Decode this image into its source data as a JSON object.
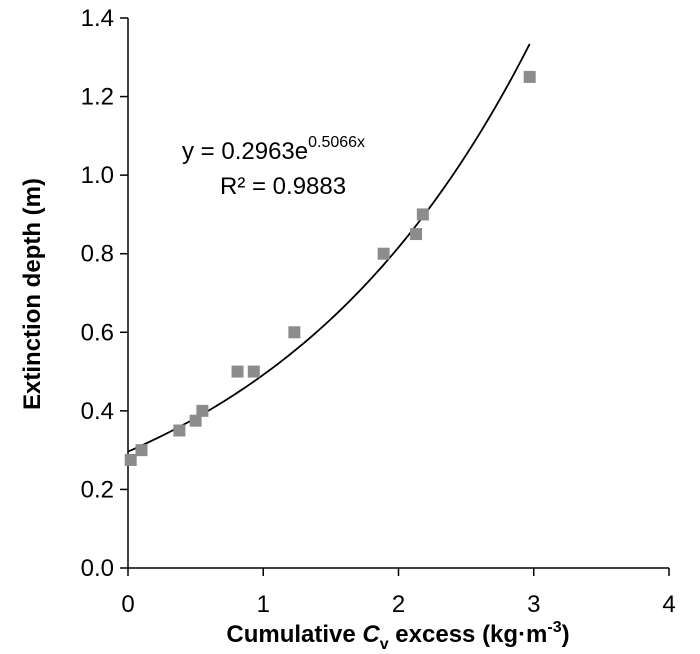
{
  "chart_data": {
    "type": "scatter",
    "xlabel": {
      "prefix": "Cumulative ",
      "var": "C",
      "sub": "v",
      "mid": " excess (kg·m",
      "sup": "-3",
      "suffix": ")"
    },
    "ylabel": "Extinction depth (m)",
    "xlim": [
      0,
      4
    ],
    "ylim": [
      0,
      1.4
    ],
    "xticks": [
      "0",
      "1",
      "2",
      "3",
      "4"
    ],
    "yticks": [
      "0.0",
      "0.2",
      "0.4",
      "0.6",
      "0.8",
      "1.0",
      "1.2",
      "1.4"
    ],
    "grid": false,
    "series": [
      {
        "marker": "square",
        "color": "#8c8c8c",
        "points": [
          {
            "x": 0.02,
            "y": 0.275
          },
          {
            "x": 0.1,
            "y": 0.3
          },
          {
            "x": 0.38,
            "y": 0.35
          },
          {
            "x": 0.5,
            "y": 0.375
          },
          {
            "x": 0.55,
            "y": 0.4
          },
          {
            "x": 0.81,
            "y": 0.5
          },
          {
            "x": 0.93,
            "y": 0.5
          },
          {
            "x": 1.23,
            "y": 0.6
          },
          {
            "x": 1.89,
            "y": 0.8
          },
          {
            "x": 2.13,
            "y": 0.85
          },
          {
            "x": 2.18,
            "y": 0.9
          },
          {
            "x": 2.97,
            "y": 1.25
          }
        ]
      }
    ],
    "trendline": {
      "type": "exponential",
      "a": 0.2963,
      "b": 0.5066,
      "x_range": [
        0,
        2.97
      ],
      "color": "#000000",
      "equation": {
        "base": "y = 0.2963e",
        "exponent": "0.5066x"
      },
      "r_squared": "R² = 0.9883"
    }
  }
}
